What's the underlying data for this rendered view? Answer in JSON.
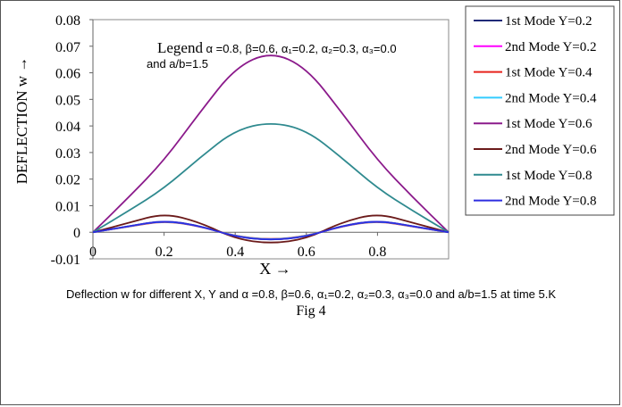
{
  "chart_data": {
    "type": "line",
    "xlabel": "X →",
    "ylabel": "DEFLECTION w →",
    "xlim": [
      0,
      1
    ],
    "ylim": [
      -0.01,
      0.08
    ],
    "x_ticks": [
      "0",
      "0.2",
      "0.4",
      "0.6",
      "0.8"
    ],
    "y_ticks": [
      "-0.01",
      "0",
      "0.01",
      "0.02",
      "0.03",
      "0.04",
      "0.05",
      "0.06",
      "0.07",
      "0.08"
    ],
    "grid": false,
    "legend_position": "right, outside plot",
    "x": [
      0,
      0.1,
      0.2,
      0.3,
      0.4,
      0.5,
      0.6,
      0.7,
      0.8,
      0.9,
      1.0
    ],
    "series": [
      {
        "name": "1st Mode Y=0.2",
        "color": "#1f2a78",
        "values": [
          0,
          0.0023,
          0.0045,
          0.0025,
          -0.0017,
          -0.003,
          -0.0017,
          0.0025,
          0.0045,
          0.0023,
          0
        ]
      },
      {
        "name": "2nd Mode Y=0.2",
        "color": "#ff00ff",
        "values": [
          0,
          0.0022,
          0.0044,
          0.0024,
          -0.0016,
          -0.0029,
          -0.0016,
          0.0024,
          0.0044,
          0.0022,
          0
        ]
      },
      {
        "name": "1st Mode Y=0.4",
        "color": "#e8231c",
        "values": [
          0,
          0.0021,
          0.0043,
          0.0023,
          -0.0015,
          -0.0028,
          -0.0015,
          0.0023,
          0.0043,
          0.0021,
          0
        ]
      },
      {
        "name": "2nd Mode Y=0.4",
        "color": "#33ccff",
        "values": [
          0,
          0.0022,
          0.0044,
          0.0024,
          -0.0016,
          -0.0029,
          -0.0016,
          0.0024,
          0.0044,
          0.0022,
          0
        ]
      },
      {
        "name": "1st Mode Y=0.6",
        "color": "#8b1a8b",
        "values": [
          0,
          0.013,
          0.027,
          0.045,
          0.062,
          0.068,
          0.062,
          0.045,
          0.027,
          0.013,
          0
        ]
      },
      {
        "name": "2nd Mode Y=0.6",
        "color": "#6b1a1a",
        "values": [
          0,
          0.0035,
          0.0072,
          0.0038,
          -0.0025,
          -0.0043,
          -0.0025,
          0.0038,
          0.0072,
          0.0035,
          0
        ]
      },
      {
        "name": "1st Mode Y=0.8",
        "color": "#2f8a8f",
        "values": [
          0,
          0.008,
          0.0165,
          0.028,
          0.0385,
          0.0415,
          0.0385,
          0.028,
          0.0165,
          0.008,
          0
        ]
      },
      {
        "name": "2nd Mode Y=0.8",
        "color": "#2d2de0",
        "values": [
          0,
          0.0022,
          0.0045,
          0.0024,
          -0.0017,
          -0.003,
          -0.0017,
          0.0024,
          0.0045,
          0.0022,
          0
        ]
      }
    ]
  },
  "annotation": {
    "legend_word": "Legend",
    "params_line1": "α =0.8, β=0.6, α₁=0.2, α₂=0.3, α₃=0.0",
    "params_line2": "and a/b=1.5"
  },
  "caption": "Deflection w for different X, Y and α =0.8, β=0.6, α₁=0.2, α₂=0.3, α₃=0.0 and a/b=1.5 at time 5.K",
  "figure_label": "Fig 4"
}
